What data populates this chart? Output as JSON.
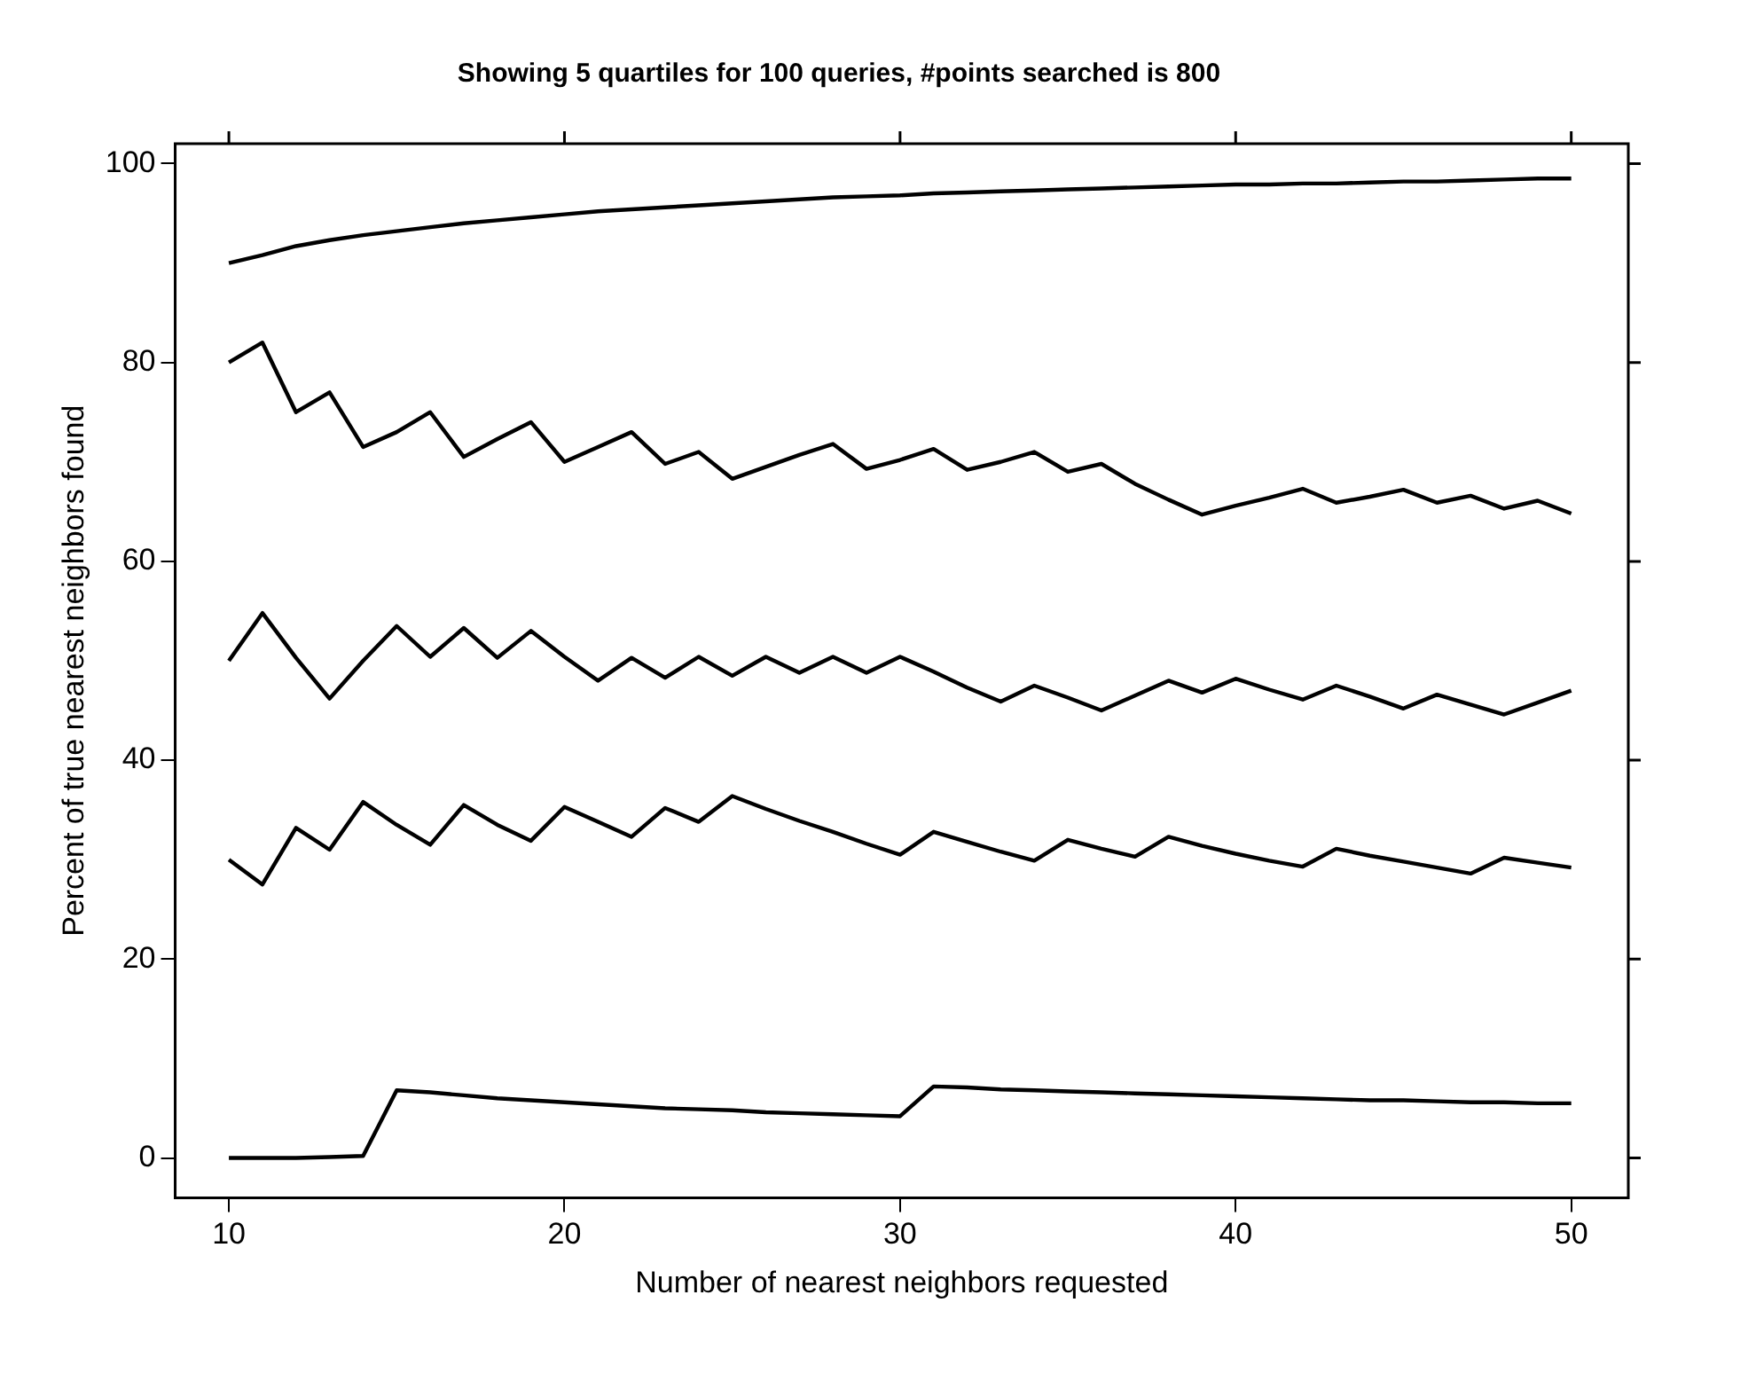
{
  "chart_data": {
    "type": "line",
    "title": "Showing 5 quartiles for 100 queries, #points searched is 800",
    "xlabel": "Number of nearest neighbors requested",
    "ylabel": "Percent of true nearest neighbors found",
    "x": [
      10,
      11,
      12,
      13,
      14,
      15,
      16,
      17,
      18,
      19,
      20,
      21,
      22,
      23,
      24,
      25,
      26,
      27,
      28,
      29,
      30,
      31,
      32,
      33,
      34,
      35,
      36,
      37,
      38,
      39,
      40,
      41,
      42,
      43,
      44,
      45,
      46,
      47,
      48,
      49,
      50
    ],
    "series": [
      {
        "color": "#000000",
        "values": [
          90,
          90.8,
          91.7,
          92.3,
          92.8,
          93.2,
          93.6,
          94,
          94.3,
          94.6,
          94.9,
          95.2,
          95.4,
          95.6,
          95.8,
          96,
          96.2,
          96.4,
          96.6,
          96.7,
          96.8,
          97,
          97.1,
          97.2,
          97.3,
          97.4,
          97.5,
          97.6,
          97.7,
          97.8,
          97.9,
          97.9,
          98,
          98,
          98.1,
          98.2,
          98.2,
          98.3,
          98.4,
          98.5,
          98.5
        ]
      },
      {
        "color": "#000000",
        "values": [
          80,
          82,
          75,
          77,
          71.5,
          73,
          75,
          70.5,
          72.3,
          74,
          70,
          71.5,
          73,
          69.8,
          71,
          68.3,
          69.5,
          70.7,
          71.8,
          69.3,
          70.2,
          71.3,
          69.2,
          70,
          71,
          69,
          69.8,
          67.8,
          66.2,
          64.7,
          65.6,
          66.4,
          67.3,
          65.9,
          66.5,
          67.2,
          65.9,
          66.6,
          65.3,
          66.1,
          64.8
        ]
      },
      {
        "color": "#000000",
        "values": [
          50,
          54.8,
          50.3,
          46.2,
          50,
          53.5,
          50.4,
          53.3,
          50.3,
          53,
          50.4,
          48,
          50.3,
          48.3,
          50.4,
          48.5,
          50.4,
          48.8,
          50.4,
          48.8,
          50.4,
          48.9,
          47.3,
          45.9,
          47.5,
          46.3,
          45,
          46.5,
          48,
          46.8,
          48.2,
          47.1,
          46.1,
          47.5,
          46.4,
          45.2,
          46.6,
          45.6,
          44.6,
          45.8,
          47
        ]
      },
      {
        "color": "#000000",
        "values": [
          30,
          27.5,
          33.2,
          31,
          35.8,
          33.5,
          31.5,
          35.5,
          33.5,
          31.9,
          35.3,
          33.8,
          32.3,
          35.2,
          33.8,
          36.4,
          35.1,
          33.9,
          32.8,
          31.6,
          30.5,
          32.8,
          31.8,
          30.8,
          29.9,
          32,
          31.1,
          30.3,
          32.3,
          31.4,
          30.6,
          29.9,
          29.3,
          31.1,
          30.4,
          29.8,
          29.2,
          28.6,
          30.2,
          29.7,
          29.2
        ]
      },
      {
        "color": "#000000",
        "values": [
          0,
          0,
          0,
          0.1,
          0.2,
          6.8,
          6.6,
          6.3,
          6,
          5.8,
          5.6,
          5.4,
          5.2,
          5,
          4.9,
          4.8,
          4.6,
          4.5,
          4.4,
          4.3,
          4.2,
          7.2,
          7.1,
          6.9,
          6.8,
          6.7,
          6.6,
          6.5,
          6.4,
          6.3,
          6.2,
          6.1,
          6,
          5.9,
          5.8,
          5.8,
          5.7,
          5.6,
          5.6,
          5.5,
          5.5
        ]
      }
    ],
    "xlim": [
      8.4,
      51.7
    ],
    "xticks": [
      10,
      20,
      30,
      40,
      50
    ],
    "ylim": [
      -4,
      102
    ],
    "yticks": [
      0,
      20,
      40,
      60,
      80,
      100
    ],
    "grid": false,
    "legend": false,
    "marker": "none",
    "line_style": "solid"
  }
}
